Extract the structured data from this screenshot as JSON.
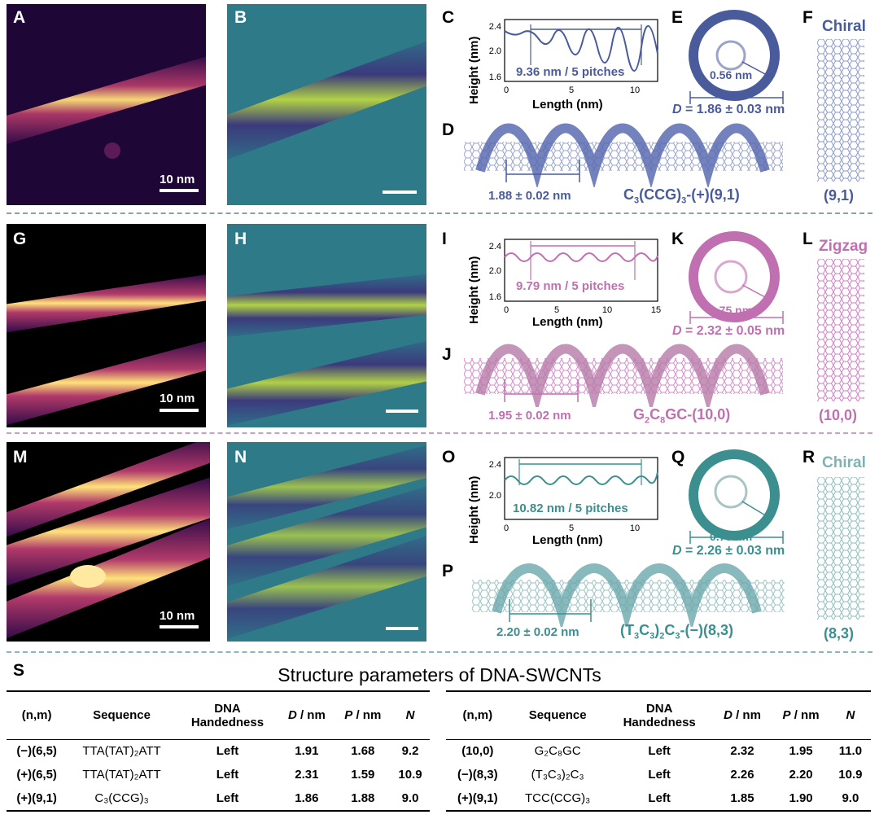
{
  "colors": {
    "row1": "#4a5b9c",
    "row2": "#c070b0",
    "row3": "#3b8f8f",
    "sep1": "#8a9cc0",
    "sep2": "#d49ad0",
    "sep3": "#8ab7bb"
  },
  "row1": {
    "letters": {
      "A": "A",
      "B": "B",
      "C": "C",
      "D": "D",
      "E": "E",
      "F": "F"
    },
    "scale_label": "10 nm",
    "plot": {
      "ylabel": "Height (nm)",
      "xlabel": "Length (nm)",
      "yticks": [
        "2.4",
        "2.0",
        "1.6"
      ],
      "xticks": [
        "0",
        "5",
        "10"
      ],
      "annotation": "9.36 nm / 5 pitches"
    },
    "pitch_label": "1.88 ± 0.02 nm",
    "inner_diameter": "0.56 nm",
    "diameter_prefix": "D",
    "diameter_value": " = 1.86 ± 0.03 nm",
    "seq_main": "C",
    "seq_sub1": "3",
    "seq_mid": "(CCG)",
    "seq_sub2": "3",
    "seq_tail": "-(+)(9,1)",
    "tube_type": "Chiral",
    "index": "(9,1)"
  },
  "row2": {
    "letters": {
      "G": "G",
      "H": "H",
      "I": "I",
      "J": "J",
      "K": "K",
      "L": "L"
    },
    "scale_label": "10 nm",
    "plot": {
      "ylabel": "Height (nm)",
      "xlabel": "Length (nm)",
      "yticks": [
        "2.4",
        "2.0",
        "1.6"
      ],
      "xticks": [
        "0",
        "5",
        "10",
        "15"
      ],
      "annotation": "9.79 nm / 5 pitches"
    },
    "pitch_label": "1.95 ± 0.02 nm",
    "inner_diameter": "0.75 nm",
    "diameter_prefix": "D",
    "diameter_value": " = 2.32 ± 0.05 nm",
    "seq_a": "G",
    "seq_sub1": "2",
    "seq_b": "C",
    "seq_sub2": "8",
    "seq_tail": "GC-(10,0)",
    "tube_type": "Zigzag",
    "index": "(10,0)"
  },
  "row3": {
    "letters": {
      "M": "M",
      "N": "N",
      "O": "O",
      "P": "P",
      "Q": "Q",
      "R": "R"
    },
    "scale_label": "10 nm",
    "plot": {
      "ylabel": "Height (nm)",
      "xlabel": "Length (nm)",
      "yticks": [
        "2.4",
        "2.0"
      ],
      "xticks": [
        "0",
        "5",
        "10"
      ],
      "annotation": "10.82 nm / 5 pitches"
    },
    "pitch_label": "2.20 ± 0.02 nm",
    "inner_diameter": "0.75 nm",
    "diameter_prefix": "D",
    "diameter_value": " = 2.26 ± 0.03 nm",
    "seq_a": "(T",
    "seq_sub1": "3",
    "seq_b": "C",
    "seq_sub2": "3",
    "seq_c": ")",
    "seq_sub3": "2",
    "seq_d": "C",
    "seq_sub4": "3",
    "seq_tail": "-(−)(8,3)",
    "tube_type": "Chiral",
    "index": "(8,3)"
  },
  "table": {
    "letter": "S",
    "title": "Structure parameters of DNA-SWCNTs",
    "headers": {
      "nm": "(n,m)",
      "seq": "Sequence",
      "hand1": "DNA",
      "hand2": "Handedness",
      "d_i": "D",
      "d_u": " / nm",
      "p_i": "P",
      "p_u": " / nm",
      "n": "N"
    },
    "left_rows": [
      {
        "nm": "(−)(6,5)",
        "seq": "TTA(TAT)₂ATT",
        "hand": "Left",
        "d": "1.91",
        "p": "1.68",
        "n": "9.2"
      },
      {
        "nm": "(+)(6,5)",
        "seq": "TTA(TAT)₂ATT",
        "hand": "Left",
        "d": "2.31",
        "p": "1.59",
        "n": "10.9"
      },
      {
        "nm": "(+)(9,1)",
        "seq": "C₃(CCG)₃",
        "hand": "Left",
        "d": "1.86",
        "p": "1.88",
        "n": "9.0"
      }
    ],
    "right_rows": [
      {
        "nm": "(10,0)",
        "seq": "G₂C₈GC",
        "hand": "Left",
        "d": "2.32",
        "p": "1.95",
        "n": "11.0"
      },
      {
        "nm": "(−)(8,3)",
        "seq": "(T₃C₃)₂C₃",
        "hand": "Left",
        "d": "2.26",
        "p": "2.20",
        "n": "10.9"
      },
      {
        "nm": "(+)(9,1)",
        "seq": "TCC(CCG)₃",
        "hand": "Left",
        "d": "1.85",
        "p": "1.90",
        "n": "9.0"
      }
    ]
  }
}
